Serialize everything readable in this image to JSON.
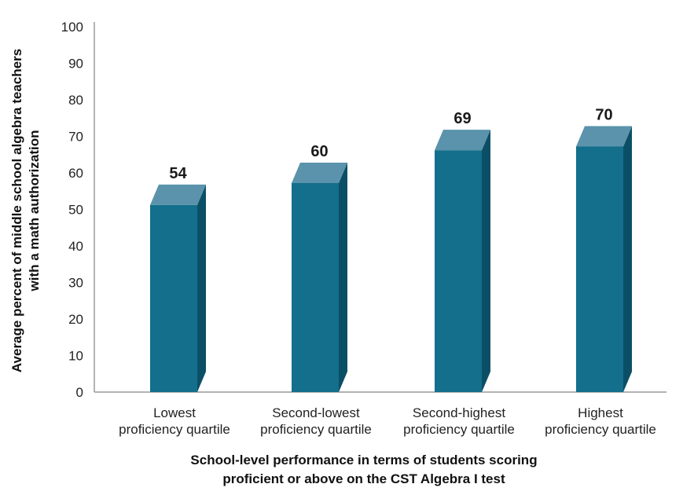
{
  "chart_data": {
    "type": "bar",
    "categories": [
      [
        "Lowest",
        "proficiency quartile"
      ],
      [
        "Second-lowest",
        "proficiency quartile"
      ],
      [
        "Second-highest",
        "proficiency quartile"
      ],
      [
        "Highest",
        "proficiency quartile"
      ]
    ],
    "values": [
      54,
      60,
      69,
      70
    ],
    "value_labels": [
      "54",
      "60",
      "69",
      "70"
    ],
    "ylim": [
      0,
      100
    ],
    "yticks": [
      0,
      10,
      20,
      30,
      40,
      50,
      60,
      70,
      80,
      90,
      100
    ],
    "ytick_labels": [
      "0",
      "10",
      "20",
      "30",
      "40",
      "50",
      "60",
      "70",
      "80",
      "90",
      "100"
    ],
    "ylabel": [
      "Average percent of middle school algebra teachers",
      "with a math authorization"
    ],
    "xlabel": [
      "School-level performance in terms of students scoring",
      "proficient or above on the CST Algebra I test"
    ],
    "grid": false,
    "legend": "none",
    "style": "3d-bar",
    "colors": {
      "front": "#136f8c",
      "side": "#0b4f66",
      "top": "#5a93ab",
      "axis": "#9a9a9a"
    }
  }
}
